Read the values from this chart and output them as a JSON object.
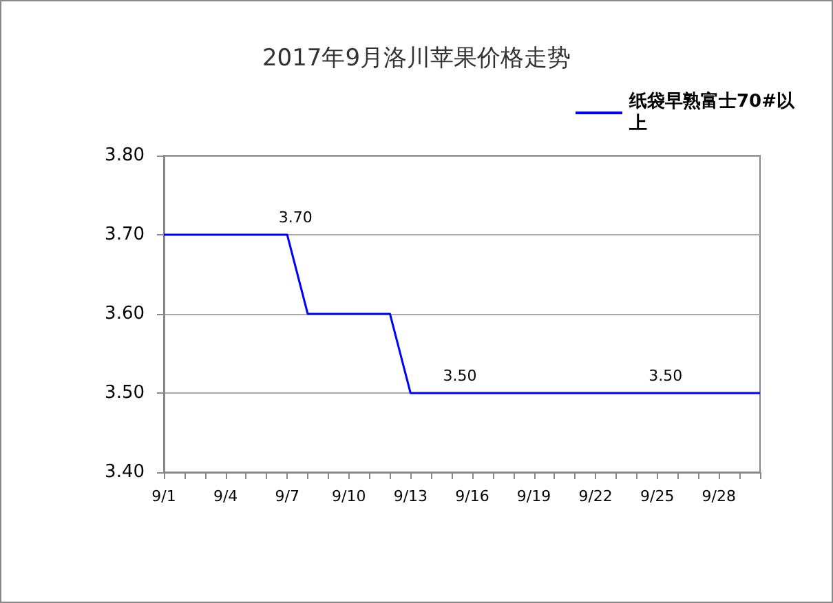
{
  "chart_data": {
    "type": "line",
    "title": "2017年9月洛川苹果价格走势",
    "categories": [
      "9/1",
      null,
      null,
      "9/4",
      null,
      null,
      "9/7",
      null,
      null,
      "9/10",
      null,
      null,
      "9/13",
      null,
      null,
      "9/16",
      null,
      null,
      "9/19",
      null,
      null,
      "9/22",
      null,
      null,
      "9/25",
      null,
      null,
      "9/28",
      null,
      null
    ],
    "series": [
      {
        "name": "纸袋早熟富士70#以上",
        "color": "#0000ff",
        "values": [
          3.7,
          3.7,
          3.7,
          3.7,
          3.7,
          3.7,
          3.7,
          3.6,
          3.6,
          3.6,
          3.6,
          3.6,
          3.5,
          3.5,
          3.5,
          3.5,
          3.5,
          3.5,
          3.5,
          3.5,
          3.5,
          3.5,
          3.5,
          3.5,
          3.5,
          3.5,
          3.5,
          3.5,
          3.5,
          3.5
        ],
        "value_labels": [
          null,
          null,
          null,
          null,
          null,
          null,
          "3.70",
          null,
          null,
          null,
          null,
          null,
          null,
          null,
          "3.50",
          null,
          null,
          null,
          null,
          null,
          null,
          null,
          null,
          null,
          "3.50",
          null,
          null,
          null,
          null,
          null
        ]
      }
    ],
    "ylim": [
      3.4,
      3.8
    ],
    "yticks": [
      {
        "value": 3.4,
        "label": "3.40"
      },
      {
        "value": 3.5,
        "label": "3.50"
      },
      {
        "value": 3.6,
        "label": "3.60"
      },
      {
        "value": 3.7,
        "label": "3.70"
      },
      {
        "value": 3.8,
        "label": "3.80"
      }
    ],
    "grid": "y",
    "legend": "top right"
  }
}
